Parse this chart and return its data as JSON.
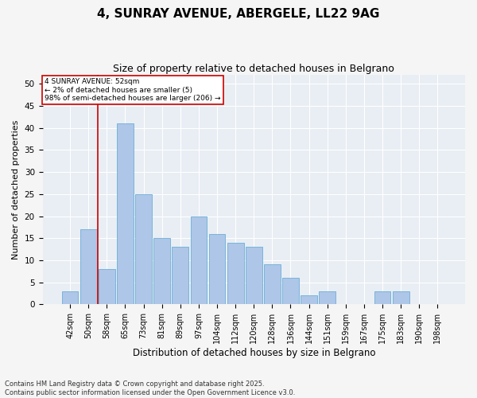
{
  "title": "4, SUNRAY AVENUE, ABERGELE, LL22 9AG",
  "subtitle": "Size of property relative to detached houses in Belgrano",
  "xlabel": "Distribution of detached houses by size in Belgrano",
  "ylabel": "Number of detached properties",
  "categories": [
    "42sqm",
    "50sqm",
    "58sqm",
    "65sqm",
    "73sqm",
    "81sqm",
    "89sqm",
    "97sqm",
    "104sqm",
    "112sqm",
    "120sqm",
    "128sqm",
    "136sqm",
    "144sqm",
    "151sqm",
    "159sqm",
    "167sqm",
    "175sqm",
    "183sqm",
    "190sqm",
    "198sqm"
  ],
  "values": [
    3,
    17,
    8,
    41,
    25,
    15,
    13,
    20,
    16,
    14,
    13,
    9,
    6,
    2,
    3,
    0,
    0,
    3,
    3,
    0,
    0
  ],
  "bar_color": "#aec6e8",
  "bar_edge_color": "#6baed6",
  "annotation_title": "4 SUNRAY AVENUE: 52sqm",
  "annotation_line1": "← 2% of detached houses are smaller (5)",
  "annotation_line2": "98% of semi-detached houses are larger (206) →",
  "annotation_box_color": "#ffffff",
  "annotation_box_edge_color": "#cc0000",
  "vline_color": "#cc0000",
  "vline_x": 1.5,
  "ylim": [
    0,
    52
  ],
  "yticks": [
    0,
    5,
    10,
    15,
    20,
    25,
    30,
    35,
    40,
    45,
    50
  ],
  "background_color": "#e8eef4",
  "grid_color": "#ffffff",
  "footer": "Contains HM Land Registry data © Crown copyright and database right 2025.\nContains public sector information licensed under the Open Government Licence v3.0.",
  "title_fontsize": 11,
  "subtitle_fontsize": 9,
  "xlabel_fontsize": 8.5,
  "ylabel_fontsize": 8,
  "tick_fontsize": 7,
  "annotation_fontsize": 6.5,
  "footer_fontsize": 6
}
